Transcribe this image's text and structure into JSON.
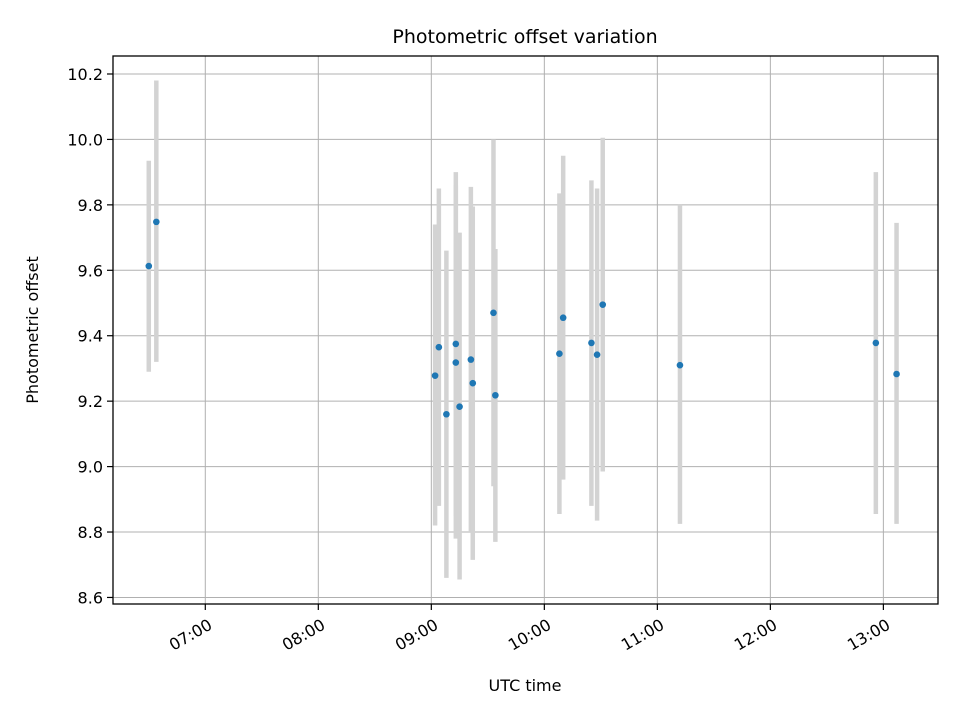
{
  "chart_data": {
    "type": "scatter",
    "title": "Photometric offset variation",
    "xlabel": "UTC time",
    "ylabel": "Photometric offset",
    "xlim": [
      "06:11",
      "13:29"
    ],
    "ylim": [
      8.58,
      10.255
    ],
    "grid": true,
    "x_ticks": [
      "07:00",
      "08:00",
      "09:00",
      "10:00",
      "11:00",
      "12:00",
      "13:00"
    ],
    "y_ticks": [
      "8.6",
      "8.8",
      "9.0",
      "9.2",
      "9.4",
      "9.6",
      "9.8",
      "10.0",
      "10.2"
    ],
    "marker_color": "#1f77b4",
    "errorbar_color": "#d3d3d3",
    "points": [
      {
        "t": "06:30",
        "y": 9.613,
        "err_low": 9.29,
        "err_high": 9.935
      },
      {
        "t": "06:34",
        "y": 9.748,
        "err_low": 9.32,
        "err_high": 10.18
      },
      {
        "t": "09:02",
        "y": 9.278,
        "err_low": 8.82,
        "err_high": 9.74
      },
      {
        "t": "09:04",
        "y": 9.365,
        "err_low": 8.88,
        "err_high": 9.85
      },
      {
        "t": "09:08",
        "y": 9.16,
        "err_low": 8.66,
        "err_high": 9.66
      },
      {
        "t": "09:13",
        "y": 9.375,
        "err_low": 8.85,
        "err_high": 9.9
      },
      {
        "t": "09:13",
        "y": 9.318,
        "err_low": 8.78,
        "err_high": 9.86
      },
      {
        "t": "09:15",
        "y": 9.183,
        "err_low": 8.655,
        "err_high": 9.715
      },
      {
        "t": "09:21",
        "y": 9.327,
        "err_low": 8.8,
        "err_high": 9.855
      },
      {
        "t": "09:22",
        "y": 9.255,
        "err_low": 8.715,
        "err_high": 9.795
      },
      {
        "t": "09:33",
        "y": 9.47,
        "err_low": 8.94,
        "err_high": 10.0
      },
      {
        "t": "09:34",
        "y": 9.218,
        "err_low": 8.77,
        "err_high": 9.665
      },
      {
        "t": "10:08",
        "y": 9.345,
        "err_low": 8.855,
        "err_high": 9.835
      },
      {
        "t": "10:10",
        "y": 9.455,
        "err_low": 8.96,
        "err_high": 9.95
      },
      {
        "t": "10:25",
        "y": 9.378,
        "err_low": 8.88,
        "err_high": 9.875
      },
      {
        "t": "10:28",
        "y": 9.342,
        "err_low": 8.835,
        "err_high": 9.85
      },
      {
        "t": "10:31",
        "y": 9.495,
        "err_low": 8.985,
        "err_high": 10.005
      },
      {
        "t": "11:12",
        "y": 9.31,
        "err_low": 8.825,
        "err_high": 9.8
      },
      {
        "t": "12:56",
        "y": 9.378,
        "err_low": 8.855,
        "err_high": 9.9
      },
      {
        "t": "13:07",
        "y": 9.283,
        "err_low": 8.825,
        "err_high": 9.745
      }
    ]
  }
}
